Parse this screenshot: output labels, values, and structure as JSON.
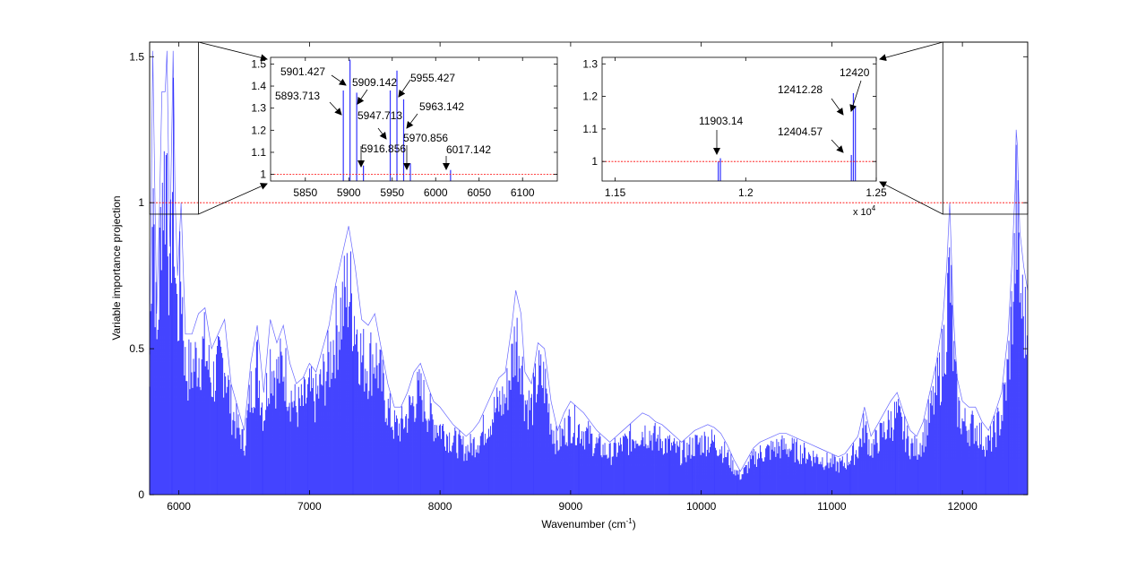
{
  "chart_data": [
    {
      "type": "bar",
      "xlabel": "Wavenumber (cm",
      "xlabel_sup": "-1",
      "xlabel_end": ")",
      "ylabel": "Variable importance projection",
      "xlim": [
        5776,
        12500
      ],
      "ylim": [
        0,
        1.55
      ],
      "xticks": [
        "6000",
        "7000",
        "8000",
        "9000",
        "10000",
        "11000",
        "12000"
      ],
      "yticks": [
        "0",
        "0.5",
        "1",
        "1.5"
      ],
      "threshold": 1,
      "series_color": "#0000ff",
      "threshold_color": "#ff0000",
      "grid": false,
      "envelope": [
        [
          5776,
          0.48
        ],
        [
          5800,
          1.52
        ],
        [
          5830,
          0.62
        ],
        [
          5850,
          0.95
        ],
        [
          5870,
          1.38
        ],
        [
          5895,
          1.38
        ],
        [
          5902,
          1.45
        ],
        [
          5909,
          1.52
        ],
        [
          5930,
          0.85
        ],
        [
          5948,
          1.3
        ],
        [
          5956,
          1.52
        ],
        [
          5963,
          1.3
        ],
        [
          5971,
          1.02
        ],
        [
          5990,
          0.75
        ],
        [
          6017,
          1.0
        ],
        [
          6050,
          0.55
        ],
        [
          6100,
          0.55
        ],
        [
          6150,
          0.62
        ],
        [
          6200,
          0.64
        ],
        [
          6250,
          0.5
        ],
        [
          6300,
          0.55
        ],
        [
          6350,
          0.6
        ],
        [
          6400,
          0.38
        ],
        [
          6450,
          0.3
        ],
        [
          6500,
          0.22
        ],
        [
          6550,
          0.45
        ],
        [
          6600,
          0.58
        ],
        [
          6650,
          0.35
        ],
        [
          6700,
          0.6
        ],
        [
          6750,
          0.52
        ],
        [
          6800,
          0.58
        ],
        [
          6850,
          0.45
        ],
        [
          6900,
          0.38
        ],
        [
          6950,
          0.4
        ],
        [
          7000,
          0.45
        ],
        [
          7050,
          0.42
        ],
        [
          7100,
          0.5
        ],
        [
          7150,
          0.58
        ],
        [
          7200,
          0.72
        ],
        [
          7250,
          0.82
        ],
        [
          7300,
          0.92
        ],
        [
          7350,
          0.78
        ],
        [
          7400,
          0.6
        ],
        [
          7450,
          0.58
        ],
        [
          7500,
          0.62
        ],
        [
          7550,
          0.5
        ],
        [
          7600,
          0.38
        ],
        [
          7650,
          0.3
        ],
        [
          7700,
          0.3
        ],
        [
          7750,
          0.35
        ],
        [
          7800,
          0.42
        ],
        [
          7850,
          0.45
        ],
        [
          7900,
          0.38
        ],
        [
          7950,
          0.32
        ],
        [
          8000,
          0.3
        ],
        [
          8050,
          0.27
        ],
        [
          8100,
          0.24
        ],
        [
          8150,
          0.22
        ],
        [
          8200,
          0.2
        ],
        [
          8250,
          0.22
        ],
        [
          8300,
          0.25
        ],
        [
          8350,
          0.3
        ],
        [
          8400,
          0.35
        ],
        [
          8450,
          0.4
        ],
        [
          8500,
          0.42
        ],
        [
          8550,
          0.58
        ],
        [
          8580,
          0.7
        ],
        [
          8620,
          0.62
        ],
        [
          8650,
          0.42
        ],
        [
          8700,
          0.38
        ],
        [
          8750,
          0.52
        ],
        [
          8800,
          0.5
        ],
        [
          8850,
          0.32
        ],
        [
          8900,
          0.22
        ],
        [
          8950,
          0.28
        ],
        [
          9000,
          0.32
        ],
        [
          9050,
          0.3
        ],
        [
          9100,
          0.28
        ],
        [
          9150,
          0.25
        ],
        [
          9200,
          0.22
        ],
        [
          9250,
          0.2
        ],
        [
          9300,
          0.18
        ],
        [
          9350,
          0.2
        ],
        [
          9400,
          0.22
        ],
        [
          9450,
          0.24
        ],
        [
          9500,
          0.26
        ],
        [
          9550,
          0.28
        ],
        [
          9600,
          0.27
        ],
        [
          9650,
          0.25
        ],
        [
          9700,
          0.24
        ],
        [
          9750,
          0.22
        ],
        [
          9800,
          0.2
        ],
        [
          9850,
          0.18
        ],
        [
          9900,
          0.2
        ],
        [
          9950,
          0.22
        ],
        [
          10000,
          0.23
        ],
        [
          10050,
          0.24
        ],
        [
          10100,
          0.23
        ],
        [
          10150,
          0.21
        ],
        [
          10200,
          0.17
        ],
        [
          10250,
          0.12
        ],
        [
          10300,
          0.08
        ],
        [
          10350,
          0.12
        ],
        [
          10400,
          0.16
        ],
        [
          10450,
          0.18
        ],
        [
          10500,
          0.19
        ],
        [
          10550,
          0.2
        ],
        [
          10600,
          0.21
        ],
        [
          10650,
          0.21
        ],
        [
          10700,
          0.2
        ],
        [
          10750,
          0.19
        ],
        [
          10800,
          0.18
        ],
        [
          10850,
          0.17
        ],
        [
          10900,
          0.16
        ],
        [
          10950,
          0.15
        ],
        [
          11000,
          0.14
        ],
        [
          11050,
          0.13
        ],
        [
          11100,
          0.14
        ],
        [
          11150,
          0.17
        ],
        [
          11200,
          0.2
        ],
        [
          11250,
          0.3
        ],
        [
          11300,
          0.2
        ],
        [
          11350,
          0.24
        ],
        [
          11400,
          0.28
        ],
        [
          11450,
          0.32
        ],
        [
          11500,
          0.35
        ],
        [
          11550,
          0.28
        ],
        [
          11600,
          0.22
        ],
        [
          11650,
          0.2
        ],
        [
          11700,
          0.25
        ],
        [
          11750,
          0.35
        ],
        [
          11800,
          0.45
        ],
        [
          11850,
          0.6
        ],
        [
          11880,
          0.78
        ],
        [
          11903,
          1.0
        ],
        [
          11930,
          0.62
        ],
        [
          11960,
          0.4
        ],
        [
          12000,
          0.32
        ],
        [
          12050,
          0.3
        ],
        [
          12100,
          0.3
        ],
        [
          12150,
          0.25
        ],
        [
          12200,
          0.22
        ],
        [
          12250,
          0.28
        ],
        [
          12300,
          0.35
        ],
        [
          12350,
          0.55
        ],
        [
          12380,
          0.8
        ],
        [
          12404,
          1.05
        ],
        [
          12412,
          1.25
        ],
        [
          12420,
          1.2
        ],
        [
          12440,
          0.9
        ],
        [
          12470,
          0.78
        ],
        [
          12500,
          0.7
        ]
      ],
      "zoom_boxes": [
        {
          "x": [
            5776,
            6150
          ],
          "y": [
            0.97,
            1.55
          ]
        },
        {
          "x": [
            11850,
            12500
          ],
          "y": [
            0.97,
            1.55
          ]
        }
      ]
    },
    {
      "type": "bar",
      "xlim": [
        5810,
        6140
      ],
      "ylim": [
        0.97,
        1.53
      ],
      "xticks": [
        "5850",
        "5900",
        "5950",
        "6000",
        "6050",
        "6100"
      ],
      "yticks": [
        "1",
        "1.1",
        "1.2",
        "1.3",
        "1.4",
        "1.5"
      ],
      "threshold": 1,
      "bars": [
        [
          5893.713,
          1.38
        ],
        [
          5901.427,
          1.52
        ],
        [
          5909.142,
          1.37
        ],
        [
          5916.856,
          1.04
        ],
        [
          5947.713,
          1.38
        ],
        [
          5955.427,
          1.47
        ],
        [
          5963.142,
          1.34
        ],
        [
          5970.856,
          1.05
        ],
        [
          6017.142,
          1.02
        ]
      ],
      "annotations": [
        "5901.427",
        "5909.142",
        "5955.427",
        "5893.713",
        "5947.713",
        "5963.142",
        "5916.856",
        "5970.856",
        "6017.142"
      ]
    },
    {
      "type": "bar",
      "xlim": [
        11450,
        12500
      ],
      "ylim": [
        0.94,
        1.32
      ],
      "xticks": [
        "1.15",
        "1.2",
        "1.25"
      ],
      "x_multiplier": "x 10",
      "x_multiplier_exp": "4",
      "yticks": [
        "1",
        "1.1",
        "1.2",
        "1.3"
      ],
      "threshold": 1,
      "bars": [
        [
          11895,
          1.0
        ],
        [
          11903.14,
          1.01
        ],
        [
          12404.57,
          1.02
        ],
        [
          12412.28,
          1.21
        ],
        [
          12420,
          1.17
        ]
      ],
      "annotations": [
        "11903.14",
        "12412.28",
        "12420",
        "12404.57"
      ]
    }
  ]
}
